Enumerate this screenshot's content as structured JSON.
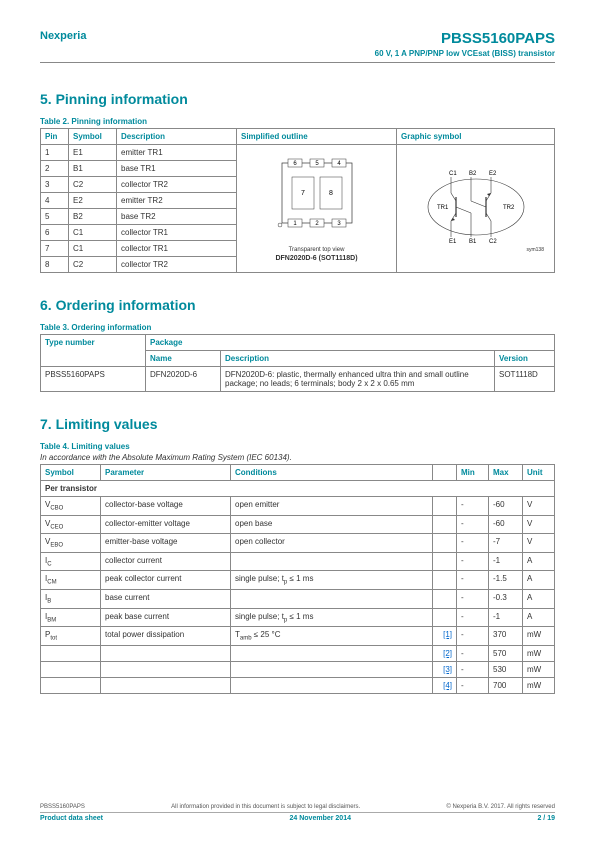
{
  "header": {
    "brand": "Nexperia",
    "part": "PBSS5160PAPS",
    "subtitle": "60 V, 1 A PNP/PNP low VCEsat (BISS) transistor"
  },
  "sect5": {
    "title": "5.   Pinning information",
    "caption": "Table 2.    Pinning information",
    "cols": [
      "Pin",
      "Symbol",
      "Description",
      "Simplified outline",
      "Graphic symbol"
    ],
    "rows": [
      [
        "1",
        "E1",
        "emitter TR1"
      ],
      [
        "2",
        "B1",
        "base TR1"
      ],
      [
        "3",
        "C2",
        "collector TR2"
      ],
      [
        "4",
        "E2",
        "emitter TR2"
      ],
      [
        "5",
        "B2",
        "base TR2"
      ],
      [
        "6",
        "C1",
        "collector TR1"
      ],
      [
        "7",
        "C1",
        "collector TR1"
      ],
      [
        "8",
        "C2",
        "collector TR2"
      ]
    ],
    "pkg_label1": "Transparent top view",
    "pkg_label2": "DFN2020D-6 (SOT1118D)",
    "sym_label": "sym138",
    "sym_pins": {
      "c1": "C1",
      "b2": "B2",
      "e2": "E2",
      "e1": "E1",
      "b1": "B1",
      "c2": "C2",
      "tr1": "TR1",
      "tr2": "TR2"
    }
  },
  "sect6": {
    "title": "6.   Ordering information",
    "caption": "Table 3.    Ordering information",
    "cols": {
      "type": "Type number",
      "pkg": "Package",
      "name": "Name",
      "desc": "Description",
      "ver": "Version"
    },
    "row": {
      "type": "PBSS5160PAPS",
      "name": "DFN2020D-6",
      "desc": "DFN2020D-6: plastic, thermally enhanced ultra thin and small outline package; no leads; 6 terminals; body 2 x 2 x 0.65 mm",
      "ver": "SOT1118D"
    }
  },
  "sect7": {
    "title": "7.   Limiting values",
    "caption": "Table 4.    Limiting values",
    "subcaption": "In accordance with the Absolute Maximum Rating System (IEC 60134).",
    "cols": [
      "Symbol",
      "Parameter",
      "Conditions",
      "",
      "Min",
      "Max",
      "Unit"
    ],
    "grouprow": "Per transistor",
    "rows": [
      {
        "sym": "V",
        "sub": "CBO",
        "param": "collector-base voltage",
        "cond": "open emitter",
        "note": "",
        "min": "-",
        "max": "-60",
        "unit": "V"
      },
      {
        "sym": "V",
        "sub": "CEO",
        "param": "collector-emitter voltage",
        "cond": "open base",
        "note": "",
        "min": "-",
        "max": "-60",
        "unit": "V"
      },
      {
        "sym": "V",
        "sub": "EBO",
        "param": "emitter-base voltage",
        "cond": "open collector",
        "note": "",
        "min": "-",
        "max": "-7",
        "unit": "V"
      },
      {
        "sym": "I",
        "sub": "C",
        "param": "collector current",
        "cond": "",
        "note": "",
        "min": "-",
        "max": "-1",
        "unit": "A"
      },
      {
        "sym": "I",
        "sub": "CM",
        "param": "peak collector current",
        "cond": "single pulse; tp ≤ 1 ms",
        "note": "",
        "min": "-",
        "max": "-1.5",
        "unit": "A"
      },
      {
        "sym": "I",
        "sub": "B",
        "param": "base current",
        "cond": "",
        "note": "",
        "min": "-",
        "max": "-0.3",
        "unit": "A"
      },
      {
        "sym": "I",
        "sub": "BM",
        "param": "peak base current",
        "cond": "single pulse; tp ≤ 1 ms",
        "note": "",
        "min": "-",
        "max": "-1",
        "unit": "A"
      },
      {
        "sym": "P",
        "sub": "tot",
        "param": "total power dissipation",
        "cond": "Tamb ≤ 25 °C",
        "note": "[1]",
        "min": "-",
        "max": "370",
        "unit": "mW"
      },
      {
        "sym": "",
        "sub": "",
        "param": "",
        "cond": "",
        "note": "[2]",
        "min": "-",
        "max": "570",
        "unit": "mW"
      },
      {
        "sym": "",
        "sub": "",
        "param": "",
        "cond": "",
        "note": "[3]",
        "min": "-",
        "max": "530",
        "unit": "mW"
      },
      {
        "sym": "",
        "sub": "",
        "param": "",
        "cond": "",
        "note": "[4]",
        "min": "-",
        "max": "700",
        "unit": "mW"
      }
    ]
  },
  "footer": {
    "left1": "PBSS5160PAPS",
    "mid1": "All information provided in this document is subject to legal disclaimers.",
    "right1": "© Nexperia B.V. 2017. All rights reserved",
    "left2": "Product data sheet",
    "mid2": "24 November 2014",
    "right2": "2 / 19"
  }
}
